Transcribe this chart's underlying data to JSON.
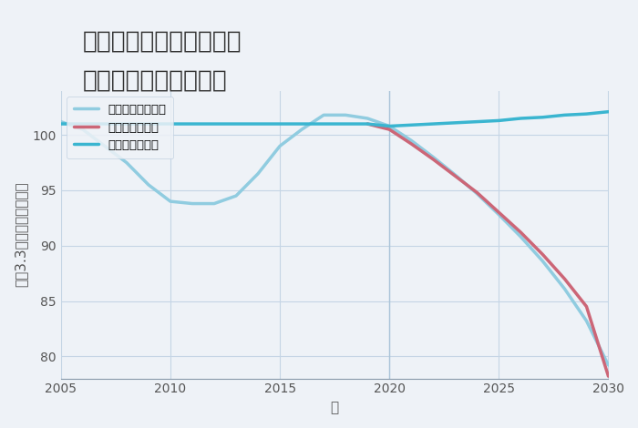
{
  "title_line1": "愛知県名古屋市中区錦の",
  "title_line2": "中古戸建ての価格推移",
  "xlabel": "年",
  "ylabel": "坪（3.3㎡）単価（万円）",
  "background_color": "#eef2f7",
  "plot_background": "#eef2f7",
  "grid_color": "#c5d5e5",
  "xlim": [
    2005,
    2030
  ],
  "ylim": [
    78,
    104
  ],
  "yticks": [
    80,
    85,
    90,
    95,
    100
  ],
  "xticks": [
    2005,
    2010,
    2015,
    2020,
    2025,
    2030
  ],
  "good_scenario": {
    "label": "グッドシナリオ",
    "color": "#3ab5d0",
    "linewidth": 2.5,
    "x": [
      2005,
      2006,
      2007,
      2008,
      2009,
      2010,
      2011,
      2012,
      2013,
      2014,
      2015,
      2016,
      2017,
      2018,
      2019,
      2020,
      2021,
      2022,
      2023,
      2024,
      2025,
      2026,
      2027,
      2028,
      2029,
      2030
    ],
    "y": [
      101.0,
      101.0,
      101.0,
      101.0,
      101.0,
      101.0,
      101.0,
      101.0,
      101.0,
      101.0,
      101.0,
      101.0,
      101.0,
      101.0,
      101.0,
      100.8,
      100.9,
      101.0,
      101.1,
      101.2,
      101.3,
      101.5,
      101.6,
      101.8,
      101.9,
      102.1
    ]
  },
  "bad_scenario": {
    "label": "バッドシナリオ",
    "color": "#cc6677",
    "linewidth": 2.5,
    "x": [
      2019,
      2020,
      2021,
      2022,
      2023,
      2024,
      2025,
      2026,
      2027,
      2028,
      2029,
      2030
    ],
    "y": [
      101.0,
      100.5,
      99.2,
      97.8,
      96.3,
      94.8,
      93.0,
      91.2,
      89.2,
      87.0,
      84.5,
      78.2
    ]
  },
  "normal_scenario": {
    "label": "ノーマルシナリオ",
    "color": "#90cce0",
    "linewidth": 2.5,
    "x": [
      2005,
      2006,
      2007,
      2008,
      2009,
      2010,
      2011,
      2012,
      2013,
      2014,
      2015,
      2016,
      2017,
      2018,
      2019,
      2020,
      2021,
      2022,
      2023,
      2024,
      2025,
      2026,
      2027,
      2028,
      2029,
      2030
    ],
    "y": [
      101.2,
      100.5,
      99.0,
      97.5,
      95.5,
      94.0,
      93.8,
      93.8,
      94.5,
      96.5,
      99.0,
      100.5,
      101.8,
      101.8,
      101.5,
      100.8,
      99.5,
      98.0,
      96.4,
      94.7,
      92.8,
      90.8,
      88.6,
      86.1,
      83.2,
      79.2
    ]
  },
  "vline_x": 2020,
  "vline_color": "#aac4d8",
  "title_fontsize": 19,
  "label_fontsize": 11,
  "tick_fontsize": 10
}
